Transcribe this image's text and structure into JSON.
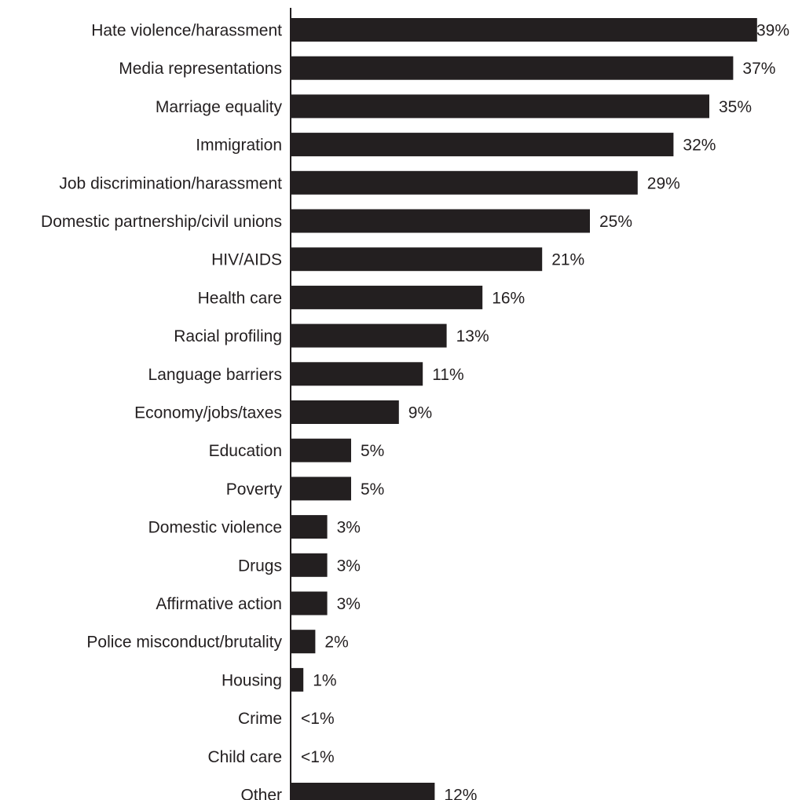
{
  "chart_data": {
    "type": "bar",
    "orientation": "horizontal",
    "title": "",
    "xlabel": "",
    "ylabel": "",
    "xlim": [
      0,
      39
    ],
    "grid": false,
    "legend": "none",
    "bar_color": "#231f20",
    "categories": [
      "Hate violence/harassment",
      "Media representations",
      "Marriage equality",
      "Immigration",
      "Job discrimination/harassment",
      "Domestic partnership/civil unions",
      "HIV/AIDS",
      "Health care",
      "Racial profiling",
      "Language barriers",
      "Economy/jobs/taxes",
      "Education",
      "Poverty",
      "Domestic violence",
      "Drugs",
      "Affirmative action",
      "Police misconduct/brutality",
      "Housing",
      "Crime",
      "Child care",
      "Other"
    ],
    "values": [
      39,
      37,
      35,
      32,
      29,
      25,
      21,
      16,
      13,
      11,
      9,
      5,
      5,
      3,
      3,
      3,
      2,
      1,
      0,
      0,
      12
    ],
    "value_labels": [
      "39%",
      "37%",
      "35%",
      "32%",
      "29%",
      "25%",
      "21%",
      "16%",
      "13%",
      "11%",
      "9%",
      "5%",
      "5%",
      "3%",
      "3%",
      "3%",
      "2%",
      "1%",
      "<1%",
      "<1%",
      "12%"
    ]
  }
}
